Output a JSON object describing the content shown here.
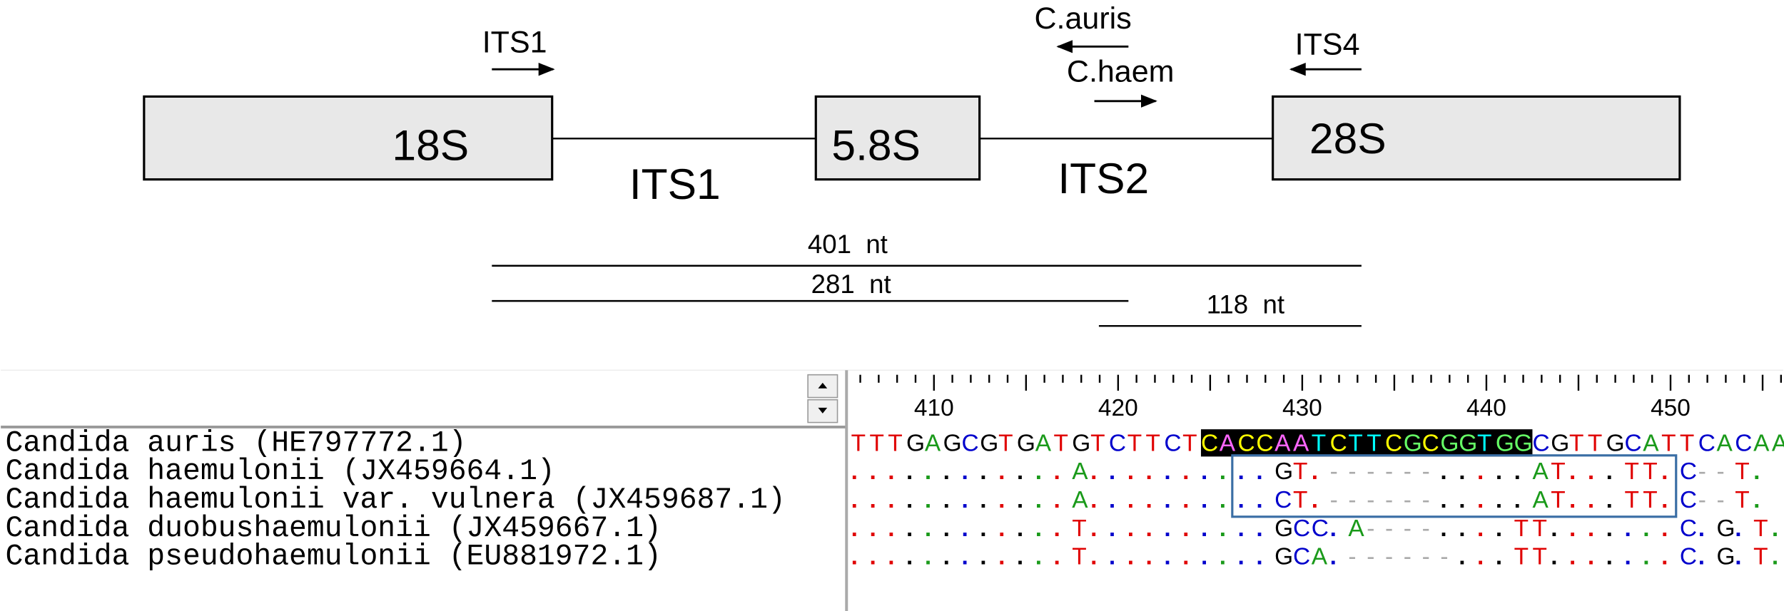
{
  "diagram": {
    "primers": [
      "ITS1",
      "C.auris",
      "C.haem",
      "ITS4"
    ],
    "genes": [
      "18S",
      "5.8S",
      "28S"
    ],
    "spacers": [
      "ITS1",
      "ITS2"
    ],
    "amplicons": [
      "401  nt",
      "281  nt",
      "118  nt"
    ]
  },
  "alignment": {
    "ruler": [
      410,
      420,
      430,
      440,
      450
    ],
    "sequences": [
      {
        "name": "Candida auris (HE797772.1)",
        "seq": "TTTGAGCGTGATGTCTTCTCACCAATCTTCGCGGTGGCGTTGCATTCACAA"
      },
      {
        "name": "Candida haemulonii (JX459664.1)",
        "seq": "............A..........GT.------.....AT...TT.C--T."
      },
      {
        "name": "Candida haemulonii var. vulnera (JX459687.1)",
        "seq": "............A..........CT.------.....AT...TT.C--T."
      },
      {
        "name": "Candida duobushaemulonii (JX459667.1)",
        "seq": "............T..........GCC.A----....TT.......C.G.T."
      },
      {
        "name": "Candida pseudohaemulonii (EU881972.1)",
        "seq": "............T..........GCA.------...TT.......C.G.T."
      }
    ]
  }
}
